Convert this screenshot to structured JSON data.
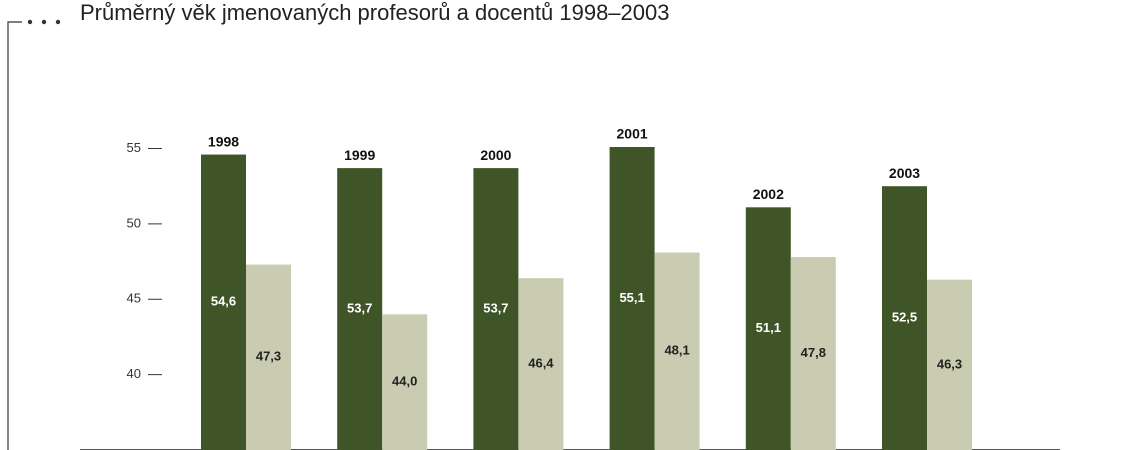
{
  "chart_data": {
    "type": "bar",
    "title": "Průměrný věk jmenovaných profesorů a docentů 1998–2003",
    "categories": [
      "1998",
      "1999",
      "2000",
      "2001",
      "2002",
      "2003"
    ],
    "series": [
      {
        "color": "#3f5528",
        "values": [
          54.6,
          53.7,
          53.7,
          55.1,
          51.1,
          52.5
        ],
        "value_labels": [
          "54,6",
          "53,7",
          "53,7",
          "55,1",
          "51,1",
          "52,5"
        ]
      },
      {
        "color": "#c9ccb0",
        "values": [
          47.3,
          44.0,
          46.4,
          48.1,
          47.8,
          46.3
        ],
        "value_labels": [
          "47,3",
          "44,0",
          "46,4",
          "48,1",
          "47,8",
          "46,3"
        ]
      }
    ],
    "ylim": [
      35,
      62
    ],
    "yticks": [
      40,
      45,
      50,
      55
    ],
    "grid": false
  }
}
